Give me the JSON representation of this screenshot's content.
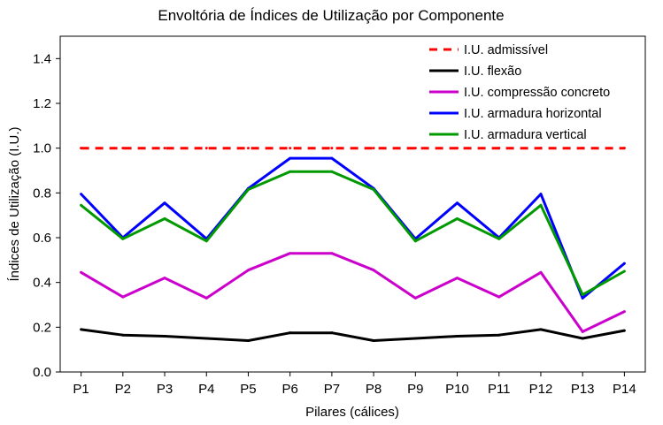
{
  "chart_data": {
    "type": "line",
    "title": "Envoltória de Índices de Utilização por Componente",
    "xlabel": "Pilares (cálices)",
    "ylabel": "Índices de Utilização (I.U.)",
    "categories": [
      "P1",
      "P2",
      "P3",
      "P4",
      "P5",
      "P6",
      "P7",
      "P8",
      "P9",
      "P10",
      "P11",
      "P12",
      "P13",
      "P14"
    ],
    "ylim": [
      0,
      1.5
    ],
    "yticks": [
      "0.0",
      "0.2",
      "0.4",
      "0.6",
      "0.8",
      "1.0",
      "1.2",
      "1.4"
    ],
    "grid": false,
    "legend_position": "top-right",
    "series": [
      {
        "name": "I.U. admissível",
        "color": "#ff0000",
        "style": "dashed",
        "values": [
          1.0,
          1.0,
          1.0,
          1.0,
          1.0,
          1.0,
          1.0,
          1.0,
          1.0,
          1.0,
          1.0,
          1.0,
          1.0,
          1.0
        ]
      },
      {
        "name": "I.U. flexão",
        "color": "#000000",
        "style": "solid",
        "values": [
          0.19,
          0.165,
          0.16,
          0.15,
          0.14,
          0.175,
          0.175,
          0.14,
          0.15,
          0.16,
          0.165,
          0.19,
          0.15,
          0.185
        ]
      },
      {
        "name": "I.U. compressão concreto",
        "color": "#cc00cc",
        "style": "solid",
        "values": [
          0.445,
          0.335,
          0.42,
          0.33,
          0.455,
          0.53,
          0.53,
          0.455,
          0.33,
          0.42,
          0.335,
          0.445,
          0.18,
          0.27
        ]
      },
      {
        "name": "I.U. armadura horizontal",
        "color": "#0000ff",
        "style": "solid",
        "values": [
          0.795,
          0.6,
          0.755,
          0.595,
          0.82,
          0.955,
          0.955,
          0.82,
          0.595,
          0.755,
          0.6,
          0.795,
          0.33,
          0.485
        ]
      },
      {
        "name": "I.U. armadura vertical",
        "color": "#009900",
        "style": "solid",
        "values": [
          0.745,
          0.595,
          0.685,
          0.585,
          0.815,
          0.895,
          0.895,
          0.815,
          0.585,
          0.685,
          0.595,
          0.745,
          0.345,
          0.45
        ]
      }
    ]
  }
}
